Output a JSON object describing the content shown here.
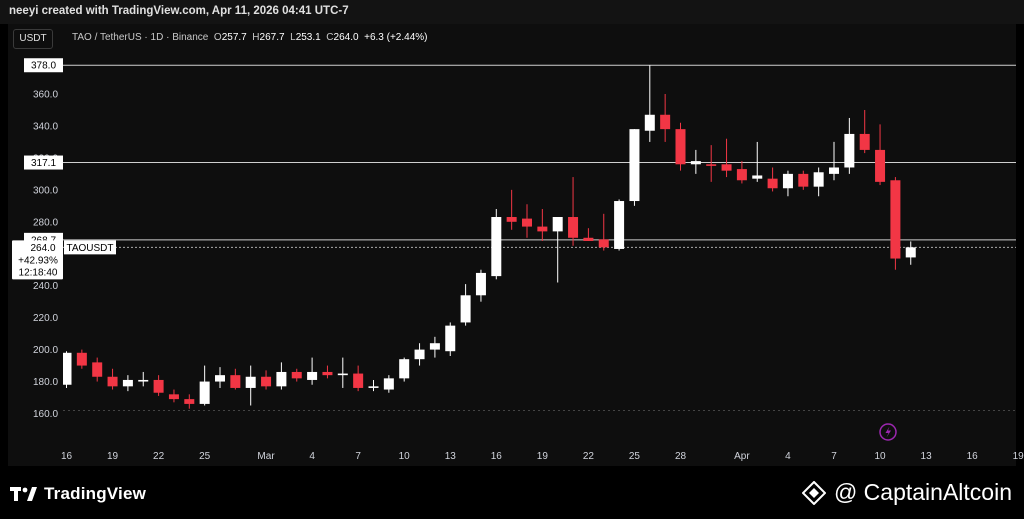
{
  "credit": "neeyi created with TradingView.com, Apr 11, 2026 04:41 UTC-7",
  "symbol_button": "USDT",
  "legend": {
    "symbol": "TAO / TetherUS · 1D · Binance",
    "o_label": "O",
    "o": "257.7",
    "h_label": "H",
    "h": "267.7",
    "l_label": "L",
    "l": "253.1",
    "c_label": "C",
    "c": "264.0",
    "change": "+6.3 (+2.44%)"
  },
  "footer": {
    "tv_brand": "TradingView",
    "watermark": "@ CaptainAltcoin"
  },
  "colors": {
    "up": "#ffffff",
    "down": "#f23645",
    "background": "#0e0e0e",
    "axis_text": "#d1d4dc"
  },
  "chart_data": {
    "type": "candlestick",
    "ylim": [
      150,
      385
    ],
    "y_ticks": [
      160,
      180,
      200,
      220,
      240,
      260,
      280,
      300,
      320,
      340,
      360
    ],
    "x_labels": [
      {
        "label": "16",
        "day": 0
      },
      {
        "label": "19",
        "day": 3
      },
      {
        "label": "22",
        "day": 6
      },
      {
        "label": "25",
        "day": 9
      },
      {
        "label": "Mar",
        "day": 13
      },
      {
        "label": "4",
        "day": 16
      },
      {
        "label": "7",
        "day": 19
      },
      {
        "label": "10",
        "day": 22
      },
      {
        "label": "13",
        "day": 25
      },
      {
        "label": "16",
        "day": 28
      },
      {
        "label": "19",
        "day": 31
      },
      {
        "label": "22",
        "day": 34
      },
      {
        "label": "25",
        "day": 37
      },
      {
        "label": "28",
        "day": 40
      },
      {
        "label": "Apr",
        "day": 44
      },
      {
        "label": "4",
        "day": 47
      },
      {
        "label": "7",
        "day": 50
      },
      {
        "label": "10",
        "day": 53
      },
      {
        "label": "13",
        "day": 56
      },
      {
        "label": "16",
        "day": 59
      },
      {
        "label": "19",
        "day": 62
      }
    ],
    "horizontal_lines": [
      {
        "value": 378.0,
        "label": "378.0"
      },
      {
        "value": 317.1,
        "label": "317.1"
      },
      {
        "value": 268.7,
        "label": "268.7"
      }
    ],
    "current_price": {
      "value": 264.0,
      "label": "264.0",
      "change": "+42.93%",
      "countdown": "12:18:40",
      "name": "TAOUSDT"
    },
    "candles": [
      {
        "day": 0,
        "o": 178,
        "h": 199,
        "l": 176,
        "c": 198
      },
      {
        "day": 1,
        "o": 198,
        "h": 200,
        "l": 188,
        "c": 190
      },
      {
        "day": 2,
        "o": 192,
        "h": 195,
        "l": 180,
        "c": 183
      },
      {
        "day": 3,
        "o": 183,
        "h": 188,
        "l": 175,
        "c": 177
      },
      {
        "day": 4,
        "o": 177,
        "h": 184,
        "l": 174,
        "c": 181
      },
      {
        "day": 5,
        "o": 180,
        "h": 186,
        "l": 177,
        "c": 181
      },
      {
        "day": 6,
        "o": 181,
        "h": 184,
        "l": 171,
        "c": 173
      },
      {
        "day": 7,
        "o": 172,
        "h": 175,
        "l": 167,
        "c": 169
      },
      {
        "day": 8,
        "o": 169,
        "h": 172,
        "l": 163,
        "c": 166
      },
      {
        "day": 9,
        "o": 166,
        "h": 190,
        "l": 165,
        "c": 180
      },
      {
        "day": 10,
        "o": 180,
        "h": 189,
        "l": 176,
        "c": 184
      },
      {
        "day": 11,
        "o": 184,
        "h": 188,
        "l": 175,
        "c": 176
      },
      {
        "day": 12,
        "o": 176,
        "h": 190,
        "l": 165,
        "c": 183
      },
      {
        "day": 13,
        "o": 183,
        "h": 187,
        "l": 175,
        "c": 177
      },
      {
        "day": 14,
        "o": 177,
        "h": 192,
        "l": 175,
        "c": 186
      },
      {
        "day": 15,
        "o": 186,
        "h": 188,
        "l": 180,
        "c": 182
      },
      {
        "day": 16,
        "o": 181,
        "h": 195,
        "l": 178,
        "c": 186
      },
      {
        "day": 17,
        "o": 186,
        "h": 190,
        "l": 182,
        "c": 184
      },
      {
        "day": 18,
        "o": 184,
        "h": 195,
        "l": 176,
        "c": 185
      },
      {
        "day": 19,
        "o": 185,
        "h": 190,
        "l": 174,
        "c": 176
      },
      {
        "day": 20,
        "o": 176,
        "h": 181,
        "l": 174,
        "c": 177
      },
      {
        "day": 21,
        "o": 175,
        "h": 184,
        "l": 173,
        "c": 182
      },
      {
        "day": 22,
        "o": 182,
        "h": 195,
        "l": 180,
        "c": 194
      },
      {
        "day": 23,
        "o": 194,
        "h": 204,
        "l": 190,
        "c": 200
      },
      {
        "day": 24,
        "o": 200,
        "h": 208,
        "l": 195,
        "c": 204
      },
      {
        "day": 25,
        "o": 199,
        "h": 217,
        "l": 196,
        "c": 215
      },
      {
        "day": 26,
        "o": 217,
        "h": 241,
        "l": 215,
        "c": 234
      },
      {
        "day": 27,
        "o": 234,
        "h": 250,
        "l": 230,
        "c": 248
      },
      {
        "day": 28,
        "o": 246,
        "h": 288,
        "l": 244,
        "c": 283
      },
      {
        "day": 29,
        "o": 283,
        "h": 300,
        "l": 275,
        "c": 280
      },
      {
        "day": 30,
        "o": 282,
        "h": 291,
        "l": 270,
        "c": 277
      },
      {
        "day": 31,
        "o": 277,
        "h": 288,
        "l": 268,
        "c": 274
      },
      {
        "day": 32,
        "o": 274,
        "h": 282,
        "l": 242,
        "c": 283
      },
      {
        "day": 33,
        "o": 283,
        "h": 308,
        "l": 265,
        "c": 270
      },
      {
        "day": 34,
        "o": 270,
        "h": 276,
        "l": 268,
        "c": 268
      },
      {
        "day": 35,
        "o": 269,
        "h": 285,
        "l": 262,
        "c": 264
      },
      {
        "day": 36,
        "o": 263,
        "h": 294,
        "l": 262,
        "c": 293
      },
      {
        "day": 37,
        "o": 293,
        "h": 338,
        "l": 290,
        "c": 338
      },
      {
        "day": 38,
        "o": 337,
        "h": 378,
        "l": 330,
        "c": 347
      },
      {
        "day": 39,
        "o": 347,
        "h": 360,
        "l": 330,
        "c": 338
      },
      {
        "day": 40,
        "o": 338,
        "h": 342,
        "l": 312,
        "c": 316
      },
      {
        "day": 41,
        "o": 316,
        "h": 325,
        "l": 310,
        "c": 318
      },
      {
        "day": 42,
        "o": 316,
        "h": 328,
        "l": 305,
        "c": 315
      },
      {
        "day": 43,
        "o": 316,
        "h": 332,
        "l": 308,
        "c": 312
      },
      {
        "day": 44,
        "o": 313,
        "h": 318,
        "l": 304,
        "c": 306
      },
      {
        "day": 45,
        "o": 307,
        "h": 330,
        "l": 305,
        "c": 309
      },
      {
        "day": 46,
        "o": 307,
        "h": 314,
        "l": 299,
        "c": 301
      },
      {
        "day": 47,
        "o": 301,
        "h": 312,
        "l": 296,
        "c": 310
      },
      {
        "day": 48,
        "o": 310,
        "h": 312,
        "l": 300,
        "c": 302
      },
      {
        "day": 49,
        "o": 302,
        "h": 314,
        "l": 296,
        "c": 311
      },
      {
        "day": 50,
        "o": 310,
        "h": 330,
        "l": 306,
        "c": 314
      },
      {
        "day": 51,
        "o": 314,
        "h": 345,
        "l": 310,
        "c": 335
      },
      {
        "day": 52,
        "o": 335,
        "h": 350,
        "l": 323,
        "c": 325
      },
      {
        "day": 53,
        "o": 325,
        "h": 341,
        "l": 303,
        "c": 305
      },
      {
        "day": 54,
        "o": 306,
        "h": 308,
        "l": 250,
        "c": 257
      },
      {
        "day": 55,
        "o": 257.7,
        "h": 267.7,
        "l": 253.1,
        "c": 264.0
      }
    ]
  }
}
